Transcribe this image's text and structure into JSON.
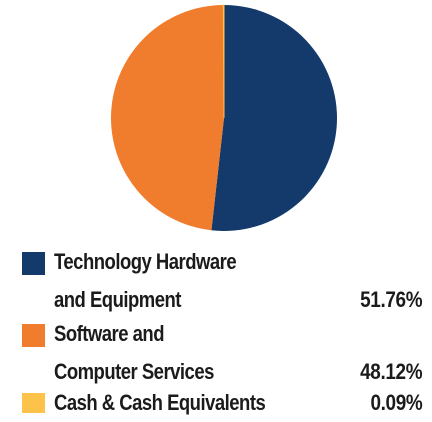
{
  "chart_data": {
    "type": "pie",
    "title": "",
    "slices": [
      {
        "label_lines": [
          "Technology Hardware",
          "and Equipment"
        ],
        "value": 51.76,
        "value_label": "51.76%",
        "color": "#143a6b"
      },
      {
        "label_lines": [
          "Software and",
          "Computer Services"
        ],
        "value": 48.12,
        "value_label": "48.12%",
        "color": "#f07d2d"
      },
      {
        "label_lines": [
          "Cash & Cash Equivalents"
        ],
        "value": 0.09,
        "value_label": "0.09%",
        "color": "#fdc24a"
      }
    ],
    "legend_position": "bottom"
  }
}
